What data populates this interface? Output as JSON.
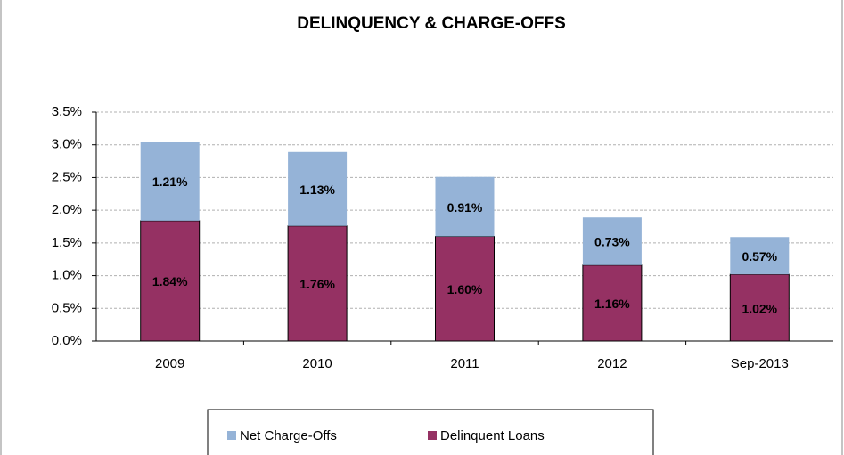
{
  "chart_data": {
    "type": "stacked_bar",
    "title": "DELINQUENCY & CHARGE-OFFS",
    "categories": [
      "2009",
      "2010",
      "2011",
      "2012",
      "Sep-2013"
    ],
    "series": [
      {
        "name": "Delinquent Loans",
        "color": "#953163",
        "values": [
          1.84,
          1.76,
          1.6,
          1.16,
          1.02
        ],
        "value_labels": [
          "1.84%",
          "1.76%",
          "1.60%",
          "1.16%",
          "1.02%"
        ]
      },
      {
        "name": "Net Charge-Offs",
        "color": "#95b3d7",
        "values": [
          1.21,
          1.13,
          0.91,
          0.73,
          0.57
        ],
        "value_labels": [
          "1.21%",
          "1.13%",
          "0.91%",
          "0.73%",
          "0.57%"
        ]
      }
    ],
    "ylim": [
      0,
      3.5
    ],
    "yticks": [
      {
        "value": 0,
        "label": "0.0%"
      },
      {
        "value": 0.5,
        "label": "0.5%"
      },
      {
        "value": 1,
        "label": "1.0%"
      },
      {
        "value": 1.5,
        "label": "1.5%"
      },
      {
        "value": 2,
        "label": "2.0%"
      },
      {
        "value": 2.5,
        "label": "2.5%"
      },
      {
        "value": 3,
        "label": "3.0%"
      },
      {
        "value": 3.5,
        "label": "3.5%"
      }
    ],
    "grid": true
  }
}
